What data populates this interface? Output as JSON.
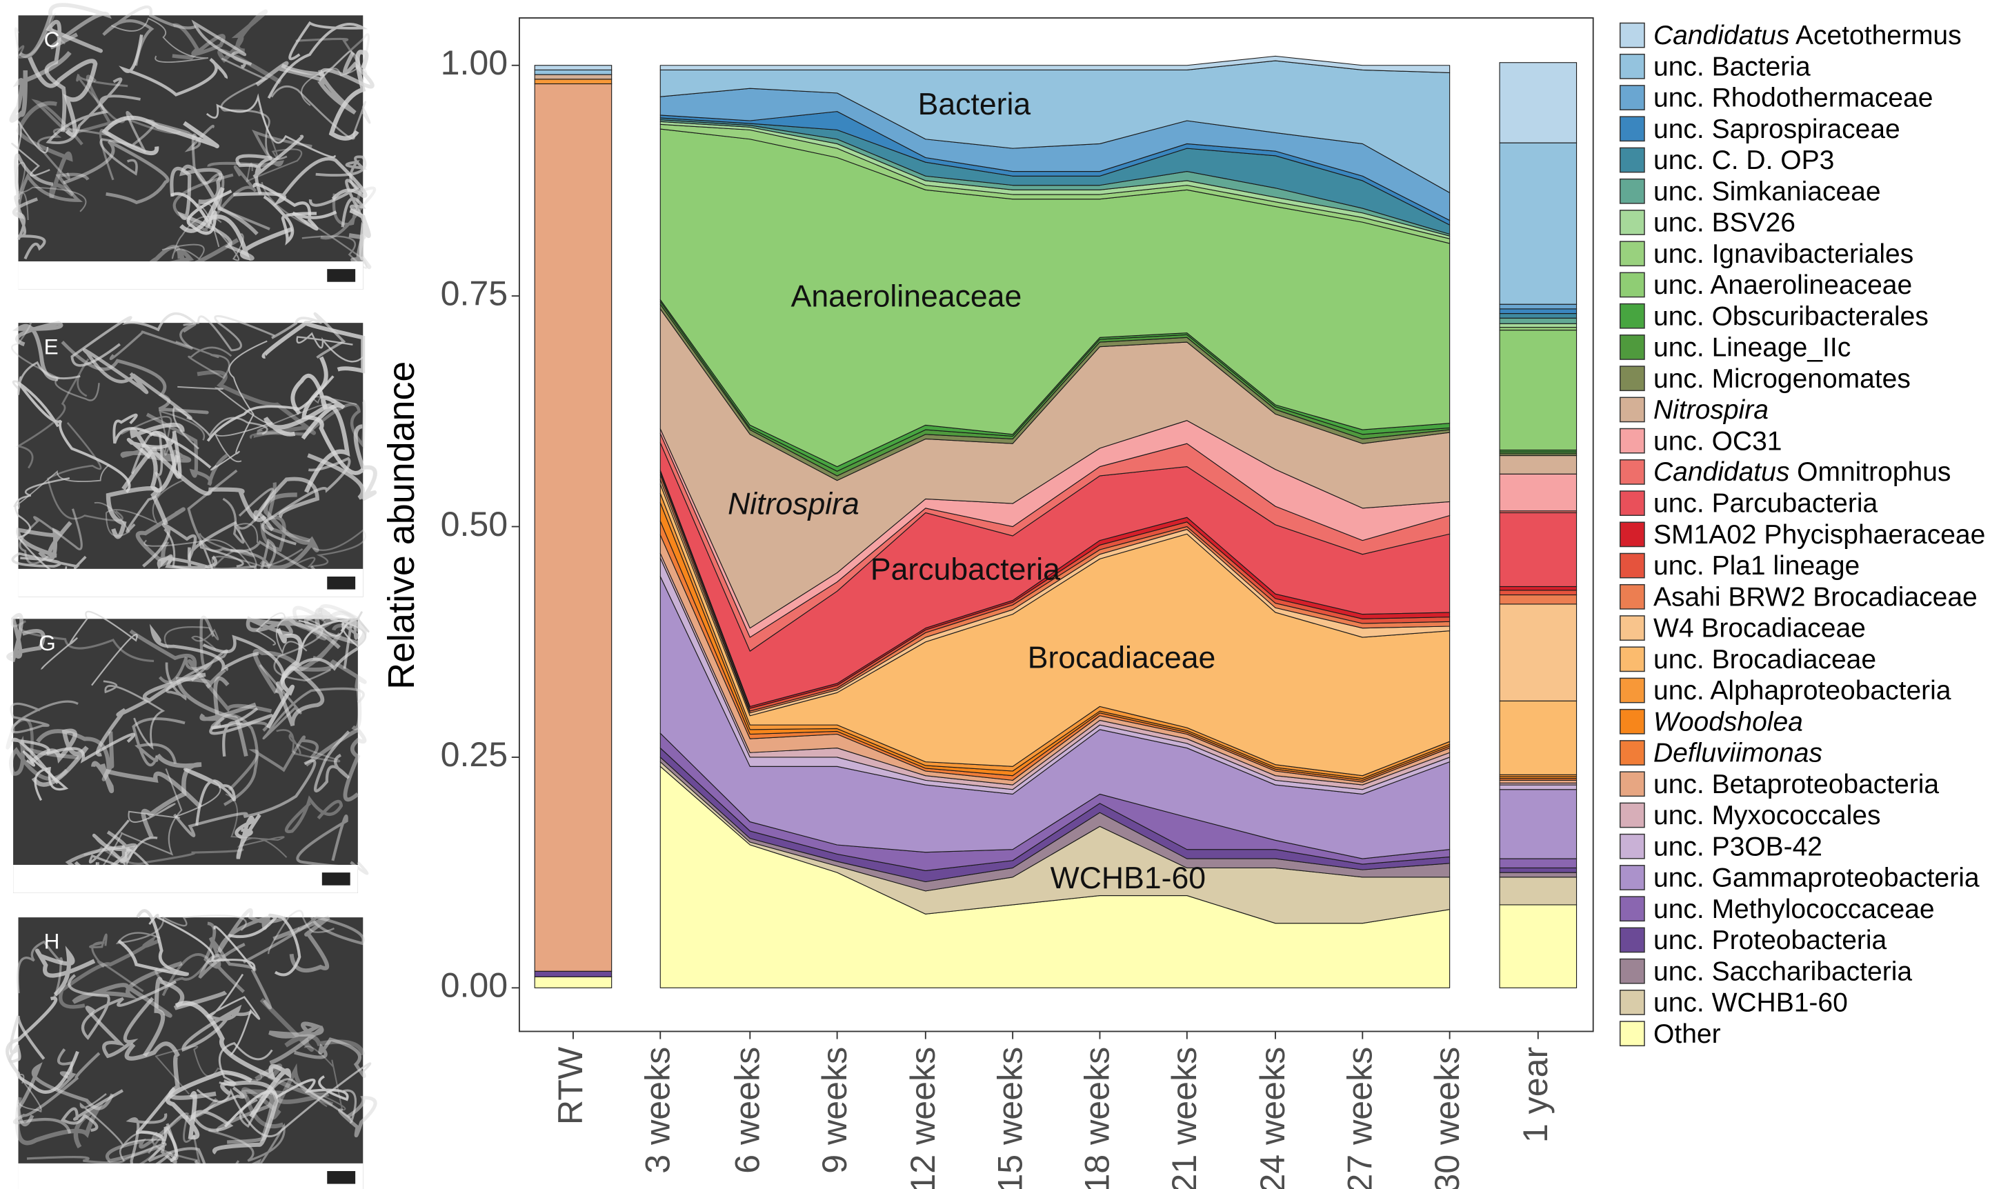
{
  "chart_data": {
    "type": "stacked_area",
    "y_label": "Relative abundance",
    "categories": [
      "RTW",
      "3 weeks",
      "6 weeks",
      "9 weeks",
      "12 weeks",
      "15 weeks",
      "18 weeks",
      "21 weeks",
      "24 weeks",
      "27 weeks",
      "30 weeks",
      "1 year"
    ],
    "ylim": [
      0,
      1
    ],
    "yticks": [
      {
        "value": 0,
        "label": "0.00"
      },
      {
        "value": 0.25,
        "label": "0.25"
      },
      {
        "value": 0.5,
        "label": "0.50"
      },
      {
        "value": 0.75,
        "label": "0.75"
      },
      {
        "value": 1,
        "label": "1.00"
      }
    ],
    "annotations": [
      "Bacteria",
      "Anaerolineaceae",
      "Nitrospira",
      "Parcubacteria",
      "Brocadiaceae",
      "WCHB1-60"
    ],
    "series": [
      {
        "name": "Candidatus Acetothermus",
        "color": "#b9d6ea",
        "values": [
          0.005,
          0.005,
          0.005,
          0.005,
          0.005,
          0.005,
          0.005,
          0.005,
          0.005,
          0.005,
          0.008,
          0.087
        ]
      },
      {
        "name": "unc. Bacteria",
        "color": "#94c3de",
        "values": [
          0.005,
          0.029,
          0.02,
          0.025,
          0.075,
          0.085,
          0.08,
          0.055,
          0.078,
          0.08,
          0.13,
          0.175
        ]
      },
      {
        "name": "unc. Rhodothermaceae",
        "color": "#6aa6d1",
        "values": [
          0,
          0.02,
          0.035,
          0.02,
          0.02,
          0.025,
          0.03,
          0.025,
          0.02,
          0.035,
          0.03,
          0.005
        ]
      },
      {
        "name": "unc. Saprospiraceae",
        "color": "#3a86bf",
        "values": [
          0,
          0.003,
          0.003,
          0.02,
          0.005,
          0.005,
          0.005,
          0.005,
          0.005,
          0.005,
          0.005,
          0.005
        ]
      },
      {
        "name": "unc. C. D. OP3",
        "color": "#3f8aa0",
        "values": [
          0,
          0.002,
          0.002,
          0.01,
          0.015,
          0.01,
          0.01,
          0.025,
          0.035,
          0.03,
          0.01,
          0.005
        ]
      },
      {
        "name": "unc. Simkaniaceae",
        "color": "#62a894",
        "values": [
          0,
          0.002,
          0.002,
          0.005,
          0.005,
          0.005,
          0.005,
          0.01,
          0.01,
          0.005,
          0.002,
          0.006
        ]
      },
      {
        "name": "unc. BSV26",
        "color": "#a6d99a",
        "values": [
          0,
          0.003,
          0.003,
          0.005,
          0.005,
          0.005,
          0.005,
          0.005,
          0.005,
          0.005,
          0.003,
          0.004
        ]
      },
      {
        "name": "unc. Ignavibacteriales",
        "color": "#99d17e",
        "values": [
          0,
          0.005,
          0.01,
          0.01,
          0.005,
          0.005,
          0.005,
          0.005,
          0.005,
          0.005,
          0.005,
          0.003
        ]
      },
      {
        "name": "unc. Anaerolineaceae",
        "color": "#8fcd74",
        "values": [
          0,
          0.185,
          0.31,
          0.335,
          0.255,
          0.255,
          0.15,
          0.155,
          0.215,
          0.225,
          0.195,
          0.13
        ]
      },
      {
        "name": "unc. Obscuribacterales",
        "color": "#47a540",
        "values": [
          0,
          0.002,
          0.003,
          0.005,
          0.005,
          0.002,
          0.002,
          0.002,
          0.002,
          0.005,
          0.005,
          0.002
        ]
      },
      {
        "name": "unc. Lineage_IIc",
        "color": "#4f9a3d",
        "values": [
          0,
          0.003,
          0.002,
          0.005,
          0.005,
          0.003,
          0.003,
          0.003,
          0.003,
          0.005,
          0.002,
          0.002
        ]
      },
      {
        "name": "unc. Microgenomates",
        "color": "#7f8a55",
        "values": [
          0,
          0.005,
          0.005,
          0.005,
          0.005,
          0.005,
          0.005,
          0.005,
          0.005,
          0.005,
          0.003,
          0.002
        ]
      },
      {
        "name": "Nitrospira",
        "color": "#d4b096",
        "values": [
          0.005,
          0.13,
          0.21,
          0.1,
          0.065,
          0.065,
          0.11,
          0.085,
          0.06,
          0.07,
          0.075,
          0.02
        ]
      },
      {
        "name": "unc. OC31",
        "color": "#f6a3a4",
        "values": [
          0,
          0.005,
          0.01,
          0.01,
          0.01,
          0.025,
          0.02,
          0.025,
          0.04,
          0.035,
          0.015,
          0.04
        ]
      },
      {
        "name": "Candidatus Omnitrophus",
        "color": "#ee6f6a",
        "values": [
          0,
          0.01,
          0.015,
          0.01,
          0.005,
          0.01,
          0.01,
          0.025,
          0.02,
          0.015,
          0.02,
          0.002
        ]
      },
      {
        "name": "unc. Parcubacteria",
        "color": "#e9505a",
        "values": [
          0,
          0.03,
          0.06,
          0.1,
          0.125,
          0.07,
          0.07,
          0.055,
          0.075,
          0.065,
          0.085,
          0.08
        ]
      },
      {
        "name": "SM1A02 Phycisphaeraceae",
        "color": "#d51f2a",
        "values": [
          0,
          0.002,
          0.002,
          0.002,
          0.002,
          0.002,
          0.005,
          0.005,
          0.005,
          0.005,
          0.005,
          0.004
        ]
      },
      {
        "name": "unc. Pla1 lineage",
        "color": "#e5533d",
        "values": [
          0,
          0.003,
          0.003,
          0.003,
          0.003,
          0.003,
          0.005,
          0.005,
          0.005,
          0.005,
          0.005,
          0.005
        ]
      },
      {
        "name": "Asahi BRW2 Brocadiaceae",
        "color": "#ec7e51",
        "values": [
          0,
          0.005,
          0.002,
          0.002,
          0.005,
          0.005,
          0.005,
          0.003,
          0.005,
          0.005,
          0.005,
          0.01
        ]
      },
      {
        "name": "W4 Brocadiaceae",
        "color": "#f8c48c",
        "values": [
          0,
          0.005,
          0.003,
          0.003,
          0.005,
          0.005,
          0.005,
          0.005,
          0.005,
          0.01,
          0.005,
          0.105
        ]
      },
      {
        "name": "unc. Brocadiaceae",
        "color": "#fbbb6e",
        "values": [
          0,
          0.01,
          0.01,
          0.035,
          0.13,
          0.165,
          0.16,
          0.21,
          0.165,
          0.15,
          0.12,
          0.08
        ]
      },
      {
        "name": "unc. Alphaproteobacteria",
        "color": "#f79838",
        "values": [
          0.005,
          0.01,
          0.005,
          0.004,
          0.004,
          0.005,
          0.005,
          0.003,
          0.003,
          0.003,
          0.003,
          0.002
        ]
      },
      {
        "name": "Woodsholea",
        "color": "#f7861b",
        "values": [
          0,
          0.02,
          0.005,
          0.003,
          0.003,
          0.005,
          0.002,
          0.002,
          0.002,
          0.002,
          0.002,
          0.002
        ]
      },
      {
        "name": "Defluviimonas",
        "color": "#f17d37",
        "values": [
          0,
          0.015,
          0.005,
          0.003,
          0.003,
          0.005,
          0.003,
          0.002,
          0.002,
          0.002,
          0.002,
          0.002
        ]
      },
      {
        "name": "unc. Betaproteobacteria",
        "color": "#e7a682",
        "values": [
          0.962,
          0.02,
          0.015,
          0.015,
          0.005,
          0.005,
          0.005,
          0.005,
          0.005,
          0.003,
          0.005,
          0.003
        ]
      },
      {
        "name": "unc. Myxococcales",
        "color": "#d7aeb8",
        "values": [
          0,
          0.005,
          0.005,
          0.01,
          0.005,
          0.005,
          0.005,
          0.005,
          0.005,
          0.005,
          0.005,
          0.002
        ]
      },
      {
        "name": "unc. P3OB-42",
        "color": "#c9b1d6",
        "values": [
          0,
          0.02,
          0.01,
          0.01,
          0.005,
          0.005,
          0.005,
          0.005,
          0.005,
          0.005,
          0.005,
          0.005
        ]
      },
      {
        "name": "unc. Gammaproteobacteria",
        "color": "#ab92cb",
        "values": [
          0,
          0.17,
          0.06,
          0.085,
          0.073,
          0.06,
          0.07,
          0.075,
          0.06,
          0.07,
          0.095,
          0.075
        ]
      },
      {
        "name": "unc. Methylococcaceae",
        "color": "#8a66b0",
        "values": [
          0,
          0.016,
          0.01,
          0.01,
          0.02,
          0.012,
          0.01,
          0.035,
          0.01,
          0.006,
          0.008,
          0.01
        ]
      },
      {
        "name": "unc. Proteobacteria",
        "color": "#6b4a96",
        "values": [
          0.006,
          0.01,
          0.008,
          0.008,
          0.012,
          0.008,
          0.01,
          0.01,
          0.01,
          0.006,
          0.007,
          0.005
        ]
      },
      {
        "name": "unc. Saccharibacteria",
        "color": "#9c8494",
        "values": [
          0,
          0.005,
          0.004,
          0.005,
          0.01,
          0.01,
          0.015,
          0.01,
          0.01,
          0.008,
          0.015,
          0.005
        ]
      },
      {
        "name": "unc. WCHB1-60",
        "color": "#d9cca9",
        "values": [
          0,
          0.005,
          0.003,
          0.007,
          0.025,
          0.03,
          0.075,
          0.03,
          0.06,
          0.05,
          0.035,
          0.03
        ]
      },
      {
        "name": "Other",
        "color": "#ffffb3",
        "values": [
          0.012,
          0.24,
          0.155,
          0.125,
          0.08,
          0.09,
          0.1,
          0.1,
          0.07,
          0.07,
          0.085,
          0.09
        ]
      }
    ]
  },
  "images": [
    {
      "label": "C"
    },
    {
      "label": "E"
    },
    {
      "label": "G"
    },
    {
      "label": "H"
    }
  ]
}
